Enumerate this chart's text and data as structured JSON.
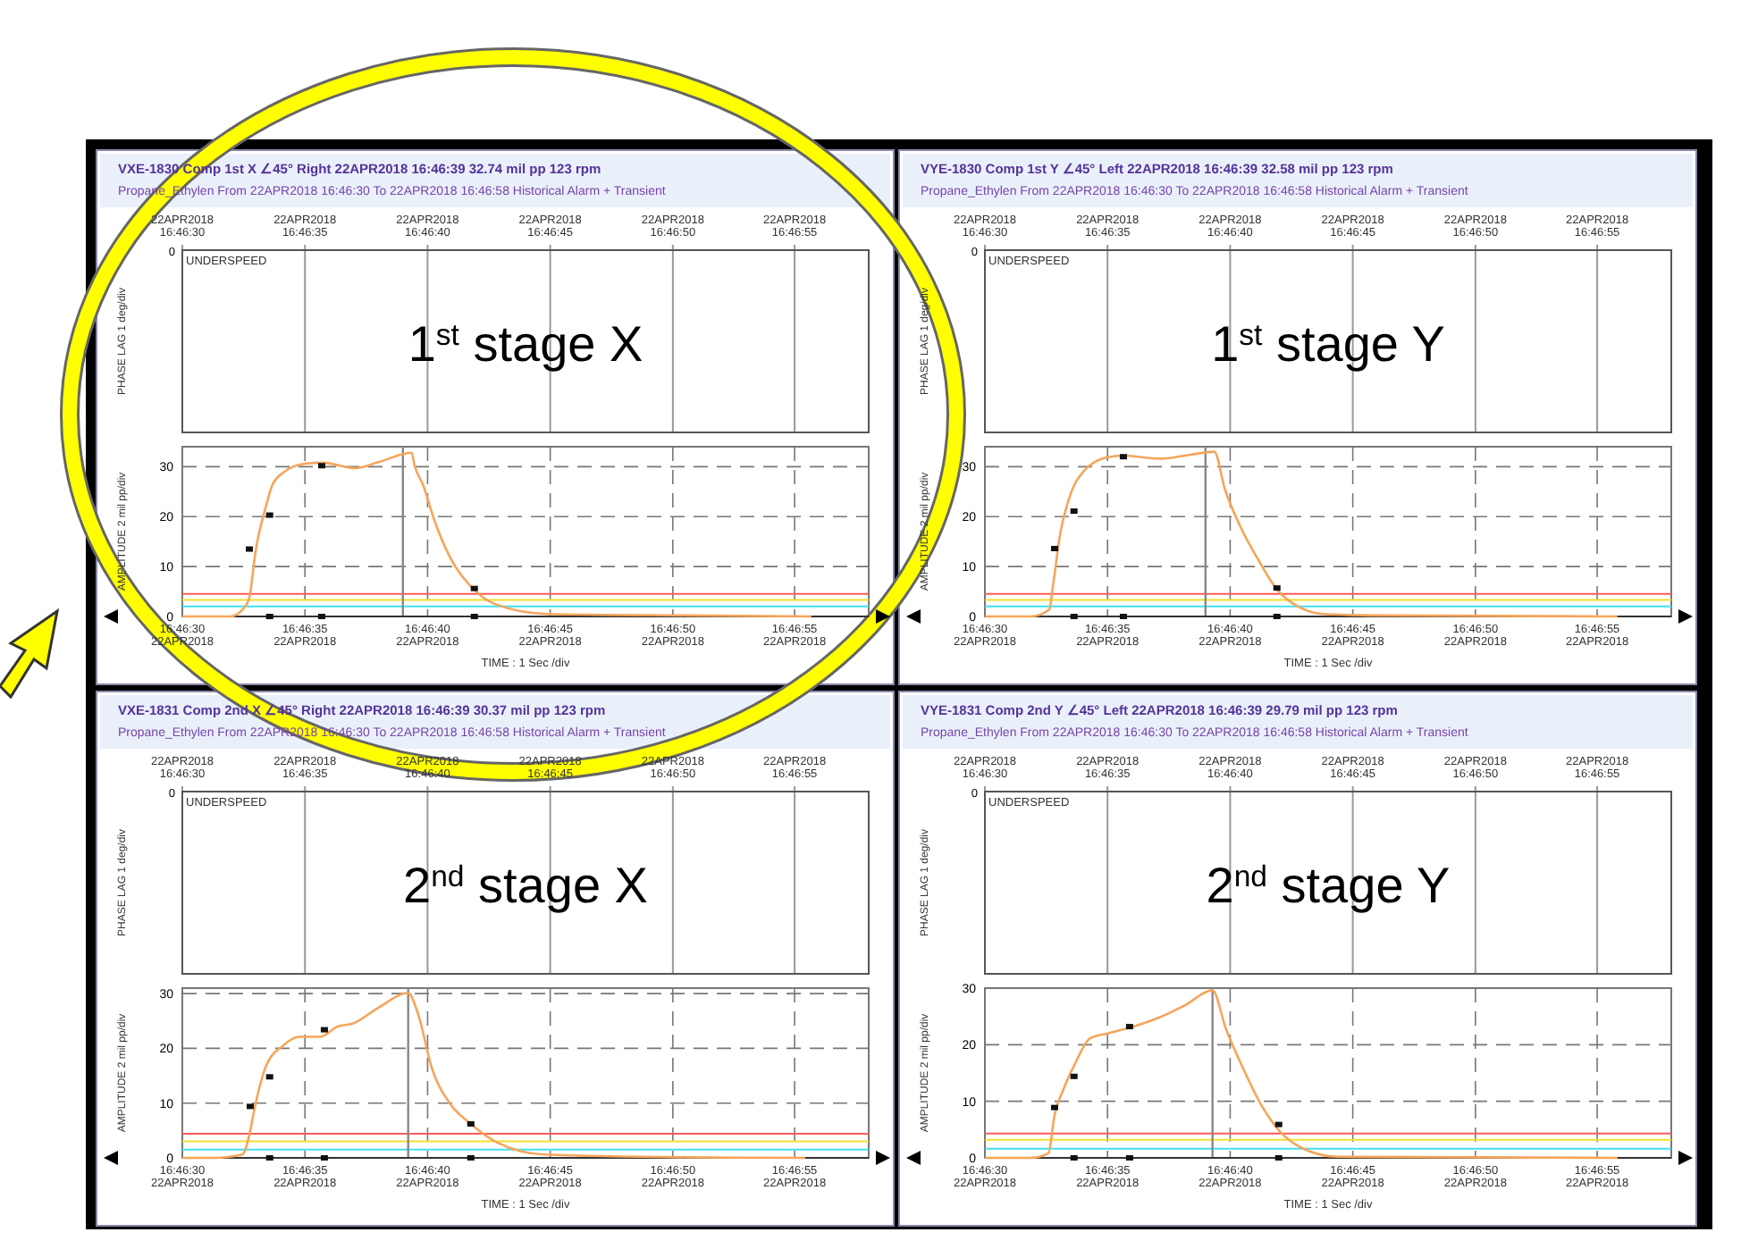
{
  "chart_data": [
    {
      "type": "line",
      "title": "1$^{st}$ stage X",
      "subtitle": "VXE-1830 Comp 1st X  ∠45°  Right    22APR2018 16:46:39    32.74 mil pp    123 rpm",
      "xlabel": "TIME : 1 Sec /div",
      "ylabel": "AMPLITUDE 2 mil pp/div",
      "annotations": [
        "Propane_Ethylen   From 22APR2018 16:46:30 To 22APR2018 16:46:58    Historical    Alarm + Transient",
        "UNDERSPEED",
        "PHASE LAG 1 deg/div",
        "0",
        "22APR2018",
        "22APR2018",
        "22APR2018",
        "22APR2018",
        "22APR2018",
        "22APR2018",
        "22APR2018",
        "22APR2018",
        "22APR2018",
        "22APR2018",
        "22APR2018",
        "22APR2018",
        "16:46:30",
        "16:46:35",
        "16:46:40",
        "16:46:45",
        "16:46:50",
        "16:46:55"
      ],
      "xlim": [
        16.775,
        16.78278
      ],
      "ylim": [
        0,
        34
      ],
      "yticks": [
        0,
        10,
        20,
        30
      ],
      "xticks": [
        {
          "value": 16.775,
          "label": "16:46:30"
        },
        {
          "value": 16.77639,
          "label": "16:46:35"
        },
        {
          "value": 16.77778,
          "label": "16:46:40"
        },
        {
          "value": 16.77917,
          "label": "16:46:45"
        },
        {
          "value": 16.78056,
          "label": "16:46:50"
        },
        {
          "value": 16.78194,
          "label": "16:46:55"
        }
      ],
      "grid": true,
      "ref_lines": [
        {
          "axis": "y",
          "value": 4.5,
          "color": "#ff5a5a"
        },
        {
          "axis": "y",
          "value": 3.3,
          "color": "#f0e030"
        },
        {
          "axis": "y",
          "value": 2.0,
          "color": "#40e0f0"
        },
        {
          "axis": "x",
          "value": 16.7775,
          "color": "#888888"
        }
      ],
      "series": [
        {
          "type": "line",
          "color": "#f5a55a",
          "marker": "none",
          "x": [
            16.775,
            16.77554,
            16.77572,
            16.77576,
            16.77583,
            16.77595,
            16.77602,
            16.77615,
            16.77639,
            16.77659,
            16.77696,
            16.77722,
            16.7776,
            16.77763,
            16.77773,
            16.77786,
            16.77803,
            16.77831,
            16.77857,
            16.77914,
            16.78072,
            16.78213
          ],
          "values": [
            0,
            0,
            2.2,
            3.8,
            13,
            22.2,
            26.3,
            28.9,
            30.6,
            30.8,
            29.7,
            30.9,
            32.8,
            30.4,
            26.3,
            19.1,
            12.0,
            5.3,
            2.3,
            0.5,
            0.2,
            0
          ]
        },
        {
          "type": "scatter",
          "color": "#111111",
          "marker": "square",
          "x": [
            16.77576,
            16.77599,
            16.77658,
            16.77831,
            16.77599,
            16.77658,
            16.77831
          ],
          "values": [
            13.5,
            20.3,
            30.2,
            5.6,
            0,
            0,
            0
          ]
        }
      ]
    },
    {
      "type": "line",
      "title": "1$^{st}$ stage Y",
      "subtitle": "VYE-1830 Comp 1st Y  ∠45°  Left    22APR2018 16:46:39    32.58 mil pp    123 rpm",
      "xlabel": "TIME : 1 Sec /div",
      "ylabel": "AMPLITUDE 2 mil pp/div",
      "annotations": [
        "Propane_Ethylen   From 22APR2018 16:46:30 To 22APR2018 16:46:58    Historical    Alarm + Transient",
        "UNDERSPEED",
        "PHASE LAG 1 deg/div",
        "0",
        "22APR2018",
        "22APR2018",
        "22APR2018",
        "22APR2018",
        "22APR2018",
        "22APR2018",
        "22APR2018",
        "22APR2018",
        "22APR2018",
        "22APR2018",
        "22APR2018",
        "22APR2018",
        "16:46:30",
        "16:46:35",
        "16:46:40",
        "16:46:45",
        "16:46:50",
        "16:46:55"
      ],
      "xlim": [
        16.775,
        16.78278
      ],
      "ylim": [
        0,
        34
      ],
      "yticks": [
        0,
        10,
        20,
        30
      ],
      "xticks": [
        {
          "value": 16.775,
          "label": "16:46:30"
        },
        {
          "value": 16.77639,
          "label": "16:46:35"
        },
        {
          "value": 16.77778,
          "label": "16:46:40"
        },
        {
          "value": 16.77917,
          "label": "16:46:45"
        },
        {
          "value": 16.78056,
          "label": "16:46:50"
        },
        {
          "value": 16.78194,
          "label": "16:46:55"
        }
      ],
      "grid": true,
      "ref_lines": [
        {
          "axis": "y",
          "value": 4.5,
          "color": "#ff5a5a"
        },
        {
          "axis": "y",
          "value": 3.3,
          "color": "#f0e030"
        },
        {
          "axis": "y",
          "value": 2.0,
          "color": "#40e0f0"
        },
        {
          "axis": "x",
          "value": 16.7775,
          "color": "#888888"
        }
      ],
      "series": [
        {
          "type": "line",
          "color": "#f5a55a",
          "marker": "none",
          "x": [
            16.775,
            16.77552,
            16.77573,
            16.77577,
            16.77585,
            16.77595,
            16.77612,
            16.77639,
            16.77656,
            16.77699,
            16.77733,
            16.7776,
            16.77772,
            16.77789,
            16.77811,
            16.77831,
            16.77857,
            16.77883,
            16.7795,
            16.78217
          ],
          "values": [
            0,
            0,
            1.4,
            5.9,
            16.2,
            23.4,
            29.1,
            31.9,
            32.2,
            31.6,
            32.4,
            33.0,
            25.5,
            18.2,
            11.0,
            5.4,
            1.8,
            0.5,
            0.2,
            0
          ]
        },
        {
          "type": "scatter",
          "color": "#111111",
          "marker": "square",
          "x": [
            16.77579,
            16.77601,
            16.77657,
            16.77831,
            16.77601,
            16.77657,
            16.77831
          ],
          "values": [
            13.6,
            21.1,
            32.0,
            5.7,
            0,
            0,
            0
          ]
        }
      ]
    },
    {
      "type": "line",
      "title": "2$^{nd}$ stage X",
      "subtitle": "VXE-1831 Comp 2nd X  ∠45°  Right    22APR2018 16:46:39    30.37 mil pp    123 rpm",
      "xlabel": "TIME : 1 Sec /div",
      "ylabel": "AMPLITUDE 2 mil pp/div",
      "annotations": [
        "Propane_Ethylen   From 22APR2018 16:46:30 To 22APR2018 16:46:58    Historical    Alarm + Transient",
        "UNDERSPEED",
        "PHASE LAG 1 deg/div",
        "0",
        "22APR2018",
        "22APR2018",
        "22APR2018",
        "22APR2018",
        "22APR2018",
        "22APR2018",
        "22APR2018",
        "22APR2018",
        "22APR2018",
        "22APR2018",
        "22APR2018",
        "22APR2018",
        "16:46:30",
        "16:46:35",
        "16:46:40",
        "16:46:45",
        "16:46:50",
        "16:46:55"
      ],
      "xlim": [
        16.775,
        16.78278
      ],
      "ylim": [
        0,
        31
      ],
      "yticks": [
        0,
        10,
        20,
        30
      ],
      "xticks": [
        {
          "value": 16.775,
          "label": "16:46:30"
        },
        {
          "value": 16.77639,
          "label": "16:46:35"
        },
        {
          "value": 16.77778,
          "label": "16:46:40"
        },
        {
          "value": 16.77917,
          "label": "16:46:45"
        },
        {
          "value": 16.78056,
          "label": "16:46:50"
        },
        {
          "value": 16.78194,
          "label": "16:46:55"
        }
      ],
      "grid": true,
      "ref_lines": [
        {
          "axis": "y",
          "value": 4.4,
          "color": "#ff5a5a"
        },
        {
          "axis": "y",
          "value": 3.0,
          "color": "#f0e030"
        },
        {
          "axis": "y",
          "value": 1.5,
          "color": "#40e0f0"
        },
        {
          "axis": "x",
          "value": 16.77756,
          "color": "#888888"
        }
      ],
      "series": [
        {
          "type": "line",
          "color": "#f5a55a",
          "marker": "none",
          "x": [
            16.775,
            16.77535,
            16.77568,
            16.77576,
            16.77582,
            16.77595,
            16.77615,
            16.77632,
            16.77656,
            16.77676,
            16.77693,
            16.77722,
            16.77756,
            16.77767,
            16.77783,
            16.77803,
            16.77827,
            16.77857,
            16.77911,
            16.78072,
            16.78206
          ],
          "values": [
            0,
            0,
            0.6,
            4.2,
            9.1,
            16.8,
            20.6,
            22.1,
            22.1,
            24.0,
            24.5,
            27.4,
            30.1,
            26.4,
            16.3,
            10.0,
            6.2,
            2.8,
            0.6,
            0.1,
            0
          ]
        },
        {
          "type": "scatter",
          "color": "#111111",
          "marker": "square",
          "x": [
            16.77577,
            16.77599,
            16.77661,
            16.77827,
            16.77599,
            16.77661,
            16.77827
          ],
          "values": [
            9.4,
            14.8,
            23.4,
            6.2,
            0,
            0,
            0
          ]
        }
      ]
    },
    {
      "type": "line",
      "title": "2$^{nd}$ stage Y",
      "subtitle": "VYE-1831 Comp 2nd Y  ∠45°  Left    22APR2018 16:46:39    29.79 mil pp    123 rpm",
      "xlabel": "TIME : 1 Sec /div",
      "ylabel": "AMPLITUDE 2 mil pp/div",
      "annotations": [
        "Propane_Ethylen   From 22APR2018 16:46:30 To 22APR2018 16:46:58    Historical    Alarm + Transient",
        "UNDERSPEED",
        "PHASE LAG 1 deg/div",
        "0",
        "22APR2018",
        "22APR2018",
        "22APR2018",
        "22APR2018",
        "22APR2018",
        "22APR2018",
        "22APR2018",
        "22APR2018",
        "22APR2018",
        "22APR2018",
        "22APR2018",
        "22APR2018",
        "16:46:30",
        "16:46:35",
        "16:46:40",
        "16:46:45",
        "16:46:50",
        "16:46:55"
      ],
      "xlim": [
        16.775,
        16.78278
      ],
      "ylim": [
        0,
        30
      ],
      "yticks": [
        0,
        10,
        20,
        30
      ],
      "xticks": [
        {
          "value": 16.775,
          "label": "16:46:30"
        },
        {
          "value": 16.77639,
          "label": "16:46:35"
        },
        {
          "value": 16.77778,
          "label": "16:46:40"
        },
        {
          "value": 16.77917,
          "label": "16:46:45"
        },
        {
          "value": 16.78056,
          "label": "16:46:50"
        },
        {
          "value": 16.78194,
          "label": "16:46:55"
        }
      ],
      "grid": true,
      "ref_lines": [
        {
          "axis": "y",
          "value": 4.3,
          "color": "#ff5a5a"
        },
        {
          "axis": "y",
          "value": 3.2,
          "color": "#f0e030"
        },
        {
          "axis": "y",
          "value": 1.6,
          "color": "#40e0f0"
        },
        {
          "axis": "x",
          "value": 16.77758,
          "color": "#888888"
        }
      ],
      "series": [
        {
          "type": "line",
          "color": "#f5a55a",
          "marker": "none",
          "x": [
            16.775,
            16.77552,
            16.77572,
            16.77579,
            16.77589,
            16.77602,
            16.77619,
            16.77639,
            16.77666,
            16.77696,
            16.77726,
            16.77758,
            16.77773,
            16.77793,
            16.77813,
            16.77833,
            16.7786,
            16.779,
            16.78217
          ],
          "values": [
            0,
            0,
            0.8,
            7.6,
            12.1,
            16.6,
            21.1,
            22.0,
            23.1,
            24.7,
            26.9,
            29.6,
            22.9,
            15.7,
            9.4,
            4.9,
            1.7,
            0.2,
            0
          ]
        },
        {
          "type": "scatter",
          "color": "#111111",
          "marker": "square",
          "x": [
            16.77579,
            16.77601,
            16.77664,
            16.77833,
            16.77601,
            16.77664,
            16.77833
          ],
          "values": [
            8.9,
            14.4,
            23.2,
            5.9,
            0,
            0,
            0
          ]
        }
      ]
    }
  ]
}
